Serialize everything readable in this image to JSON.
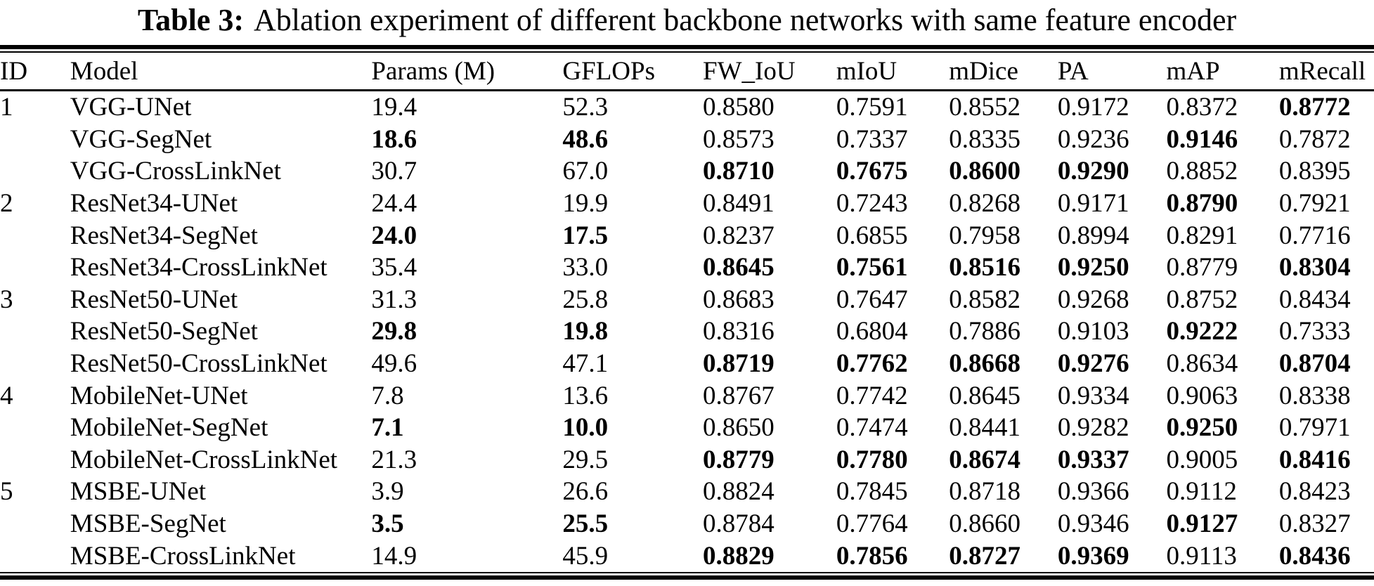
{
  "caption": {
    "label": "Table 3:",
    "text": "Ablation experiment of different backbone networks with same feature encoder"
  },
  "colors": {
    "text": "#000000",
    "background": "#ffffff",
    "rule": "#000000"
  },
  "table": {
    "columns": [
      "ID",
      "Model",
      "Params (M)",
      "GFLOPs",
      "FW_IoU",
      "mIoU",
      "mDice",
      "PA",
      "mAP",
      "mRecall"
    ],
    "rows": [
      {
        "id": "1",
        "model": "VGG-UNet",
        "metrics": [
          {
            "v": "19.4",
            "bold": false
          },
          {
            "v": "52.3",
            "bold": false
          },
          {
            "v": "0.8580",
            "bold": false
          },
          {
            "v": "0.7591",
            "bold": false
          },
          {
            "v": "0.8552",
            "bold": false
          },
          {
            "v": "0.9172",
            "bold": false
          },
          {
            "v": "0.8372",
            "bold": false
          },
          {
            "v": "0.8772",
            "bold": true
          }
        ]
      },
      {
        "id": "",
        "model": "VGG-SegNet",
        "metrics": [
          {
            "v": "18.6",
            "bold": true
          },
          {
            "v": "48.6",
            "bold": true
          },
          {
            "v": "0.8573",
            "bold": false
          },
          {
            "v": "0.7337",
            "bold": false
          },
          {
            "v": "0.8335",
            "bold": false
          },
          {
            "v": "0.9236",
            "bold": false
          },
          {
            "v": "0.9146",
            "bold": true
          },
          {
            "v": "0.7872",
            "bold": false
          }
        ]
      },
      {
        "id": "",
        "model": "VGG-CrossLinkNet",
        "metrics": [
          {
            "v": "30.7",
            "bold": false
          },
          {
            "v": "67.0",
            "bold": false
          },
          {
            "v": "0.8710",
            "bold": true
          },
          {
            "v": "0.7675",
            "bold": true
          },
          {
            "v": "0.8600",
            "bold": true
          },
          {
            "v": "0.9290",
            "bold": true
          },
          {
            "v": "0.8852",
            "bold": false
          },
          {
            "v": "0.8395",
            "bold": false
          }
        ]
      },
      {
        "id": "2",
        "model": "ResNet34-UNet",
        "metrics": [
          {
            "v": "24.4",
            "bold": false
          },
          {
            "v": "19.9",
            "bold": false
          },
          {
            "v": "0.8491",
            "bold": false
          },
          {
            "v": "0.7243",
            "bold": false
          },
          {
            "v": "0.8268",
            "bold": false
          },
          {
            "v": "0.9171",
            "bold": false
          },
          {
            "v": "0.8790",
            "bold": true
          },
          {
            "v": "0.7921",
            "bold": false
          }
        ]
      },
      {
        "id": "",
        "model": "ResNet34-SegNet",
        "metrics": [
          {
            "v": "24.0",
            "bold": true
          },
          {
            "v": "17.5",
            "bold": true
          },
          {
            "v": "0.8237",
            "bold": false
          },
          {
            "v": "0.6855",
            "bold": false
          },
          {
            "v": "0.7958",
            "bold": false
          },
          {
            "v": "0.8994",
            "bold": false
          },
          {
            "v": "0.8291",
            "bold": false
          },
          {
            "v": "0.7716",
            "bold": false
          }
        ]
      },
      {
        "id": "",
        "model": "ResNet34-CrossLinkNet",
        "metrics": [
          {
            "v": "35.4",
            "bold": false
          },
          {
            "v": "33.0",
            "bold": false
          },
          {
            "v": "0.8645",
            "bold": true
          },
          {
            "v": "0.7561",
            "bold": true
          },
          {
            "v": "0.8516",
            "bold": true
          },
          {
            "v": "0.9250",
            "bold": true
          },
          {
            "v": "0.8779",
            "bold": false
          },
          {
            "v": "0.8304",
            "bold": true
          }
        ]
      },
      {
        "id": "3",
        "model": "ResNet50-UNet",
        "metrics": [
          {
            "v": "31.3",
            "bold": false
          },
          {
            "v": "25.8",
            "bold": false
          },
          {
            "v": "0.8683",
            "bold": false
          },
          {
            "v": "0.7647",
            "bold": false
          },
          {
            "v": "0.8582",
            "bold": false
          },
          {
            "v": "0.9268",
            "bold": false
          },
          {
            "v": "0.8752",
            "bold": false
          },
          {
            "v": "0.8434",
            "bold": false
          }
        ]
      },
      {
        "id": "",
        "model": "ResNet50-SegNet",
        "metrics": [
          {
            "v": "29.8",
            "bold": true
          },
          {
            "v": "19.8",
            "bold": true
          },
          {
            "v": "0.8316",
            "bold": false
          },
          {
            "v": "0.6804",
            "bold": false
          },
          {
            "v": "0.7886",
            "bold": false
          },
          {
            "v": "0.9103",
            "bold": false
          },
          {
            "v": "0.9222",
            "bold": true
          },
          {
            "v": "0.7333",
            "bold": false
          }
        ]
      },
      {
        "id": "",
        "model": "ResNet50-CrossLinkNet",
        "metrics": [
          {
            "v": "49.6",
            "bold": false
          },
          {
            "v": "47.1",
            "bold": false
          },
          {
            "v": "0.8719",
            "bold": true
          },
          {
            "v": "0.7762",
            "bold": true
          },
          {
            "v": "0.8668",
            "bold": true
          },
          {
            "v": "0.9276",
            "bold": true
          },
          {
            "v": "0.8634",
            "bold": false
          },
          {
            "v": "0.8704",
            "bold": true
          }
        ]
      },
      {
        "id": "4",
        "model": "MobileNet-UNet",
        "metrics": [
          {
            "v": "7.8",
            "bold": false
          },
          {
            "v": "13.6",
            "bold": false
          },
          {
            "v": "0.8767",
            "bold": false
          },
          {
            "v": "0.7742",
            "bold": false
          },
          {
            "v": "0.8645",
            "bold": false
          },
          {
            "v": "0.9334",
            "bold": false
          },
          {
            "v": "0.9063",
            "bold": false
          },
          {
            "v": "0.8338",
            "bold": false
          }
        ]
      },
      {
        "id": "",
        "model": "MobileNet-SegNet",
        "metrics": [
          {
            "v": "7.1",
            "bold": true
          },
          {
            "v": "10.0",
            "bold": true
          },
          {
            "v": "0.8650",
            "bold": false
          },
          {
            "v": "0.7474",
            "bold": false
          },
          {
            "v": "0.8441",
            "bold": false
          },
          {
            "v": "0.9282",
            "bold": false
          },
          {
            "v": "0.9250",
            "bold": true
          },
          {
            "v": "0.7971",
            "bold": false
          }
        ]
      },
      {
        "id": "",
        "model": "MobileNet-CrossLinkNet",
        "metrics": [
          {
            "v": "21.3",
            "bold": false
          },
          {
            "v": "29.5",
            "bold": false
          },
          {
            "v": "0.8779",
            "bold": true
          },
          {
            "v": "0.7780",
            "bold": true
          },
          {
            "v": "0.8674",
            "bold": true
          },
          {
            "v": "0.9337",
            "bold": true
          },
          {
            "v": "0.9005",
            "bold": false
          },
          {
            "v": "0.8416",
            "bold": true
          }
        ]
      },
      {
        "id": "5",
        "model": "MSBE-UNet",
        "metrics": [
          {
            "v": "3.9",
            "bold": false
          },
          {
            "v": "26.6",
            "bold": false
          },
          {
            "v": "0.8824",
            "bold": false
          },
          {
            "v": "0.7845",
            "bold": false
          },
          {
            "v": "0.8718",
            "bold": false
          },
          {
            "v": "0.9366",
            "bold": false
          },
          {
            "v": "0.9112",
            "bold": false
          },
          {
            "v": "0.8423",
            "bold": false
          }
        ]
      },
      {
        "id": "",
        "model": "MSBE-SegNet",
        "metrics": [
          {
            "v": "3.5",
            "bold": true
          },
          {
            "v": "25.5",
            "bold": true
          },
          {
            "v": "0.8784",
            "bold": false
          },
          {
            "v": "0.7764",
            "bold": false
          },
          {
            "v": "0.8660",
            "bold": false
          },
          {
            "v": "0.9346",
            "bold": false
          },
          {
            "v": "0.9127",
            "bold": true
          },
          {
            "v": "0.8327",
            "bold": false
          }
        ]
      },
      {
        "id": "",
        "model": "MSBE-CrossLinkNet",
        "metrics": [
          {
            "v": "14.9",
            "bold": false
          },
          {
            "v": "45.9",
            "bold": false
          },
          {
            "v": "0.8829",
            "bold": true
          },
          {
            "v": "0.7856",
            "bold": true
          },
          {
            "v": "0.8727",
            "bold": true
          },
          {
            "v": "0.9369",
            "bold": true
          },
          {
            "v": "0.9113",
            "bold": false
          },
          {
            "v": "0.8436",
            "bold": true
          }
        ]
      }
    ]
  }
}
